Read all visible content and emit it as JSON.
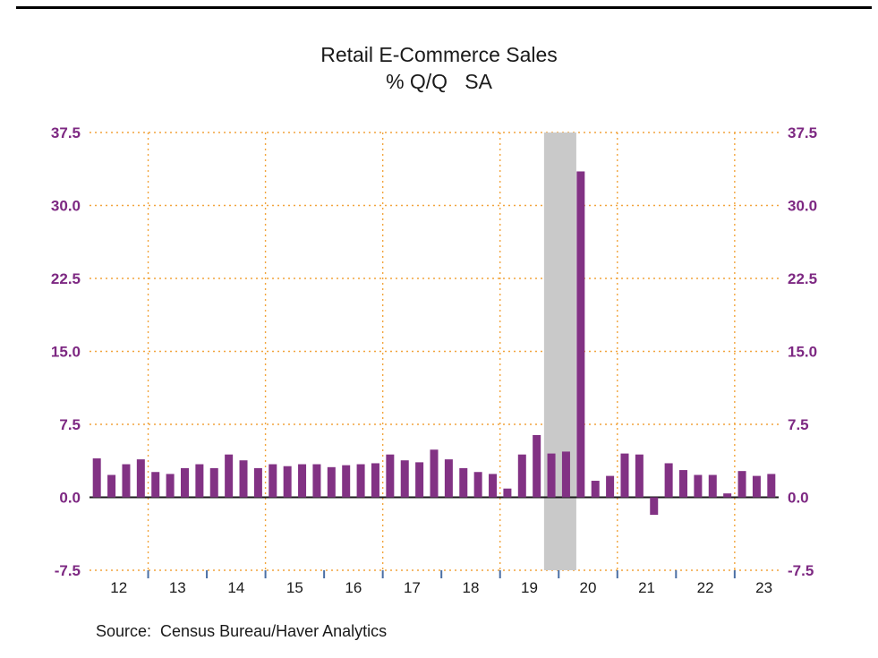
{
  "title": "Retail E-Commerce Sales",
  "subtitle": "% Q/Q   SA",
  "source": "Source:  Census Bureau/Haver Analytics",
  "colors": {
    "bar": "#823284",
    "axis_label": "#7d2882",
    "grid": "#f2a43c",
    "recession_band": "#c9c9c9",
    "zero_line": "#1a1a1a",
    "x_tick": "#4a6fa5",
    "x_label": "#1a1a1a"
  },
  "chart_data": {
    "type": "bar",
    "title": "Retail E-Commerce Sales",
    "subtitle": "% Q/Q SA",
    "xlabel": "",
    "ylabel": "",
    "ylim": [
      -7.5,
      37.5
    ],
    "yticks": [
      -7.5,
      0.0,
      7.5,
      15.0,
      22.5,
      30.0,
      37.5
    ],
    "grid": "dotted horizontal at each ytick, dotted vertical every 2 years",
    "legend": "none",
    "x_year_labels": [
      "12",
      "13",
      "14",
      "15",
      "16",
      "17",
      "18",
      "19",
      "20",
      "21",
      "22",
      "23"
    ],
    "vertical_gridline_years": [
      "2013",
      "2015",
      "2017",
      "2019",
      "2021",
      "2023"
    ],
    "recession_band": {
      "start_quarter": "2019Q4",
      "end_quarter": "2020Q2"
    },
    "quarters": [
      "2012Q1",
      "2012Q2",
      "2012Q3",
      "2012Q4",
      "2013Q1",
      "2013Q2",
      "2013Q3",
      "2013Q4",
      "2014Q1",
      "2014Q2",
      "2014Q3",
      "2014Q4",
      "2015Q1",
      "2015Q2",
      "2015Q3",
      "2015Q4",
      "2016Q1",
      "2016Q2",
      "2016Q3",
      "2016Q4",
      "2017Q1",
      "2017Q2",
      "2017Q3",
      "2017Q4",
      "2018Q1",
      "2018Q2",
      "2018Q3",
      "2018Q4",
      "2019Q1",
      "2019Q2",
      "2019Q3",
      "2019Q4",
      "2020Q1",
      "2020Q2",
      "2020Q3",
      "2020Q4",
      "2021Q1",
      "2021Q2",
      "2021Q3",
      "2021Q4",
      "2022Q1",
      "2022Q2",
      "2022Q3",
      "2022Q4",
      "2023Q1",
      "2023Q2",
      "2023Q3"
    ],
    "values": [
      4.0,
      2.3,
      3.4,
      3.9,
      2.6,
      2.4,
      3.0,
      3.4,
      3.0,
      4.4,
      3.8,
      3.0,
      3.4,
      3.2,
      3.4,
      3.4,
      3.1,
      3.3,
      3.4,
      3.5,
      4.4,
      3.8,
      3.6,
      4.9,
      3.9,
      3.0,
      2.6,
      2.4,
      0.9,
      4.4,
      6.4,
      4.5,
      4.7,
      33.5,
      1.7,
      2.2,
      4.5,
      4.4,
      -1.8,
      3.5,
      2.8,
      2.3,
      2.3,
      0.4,
      2.7,
      2.2,
      2.4
    ]
  }
}
